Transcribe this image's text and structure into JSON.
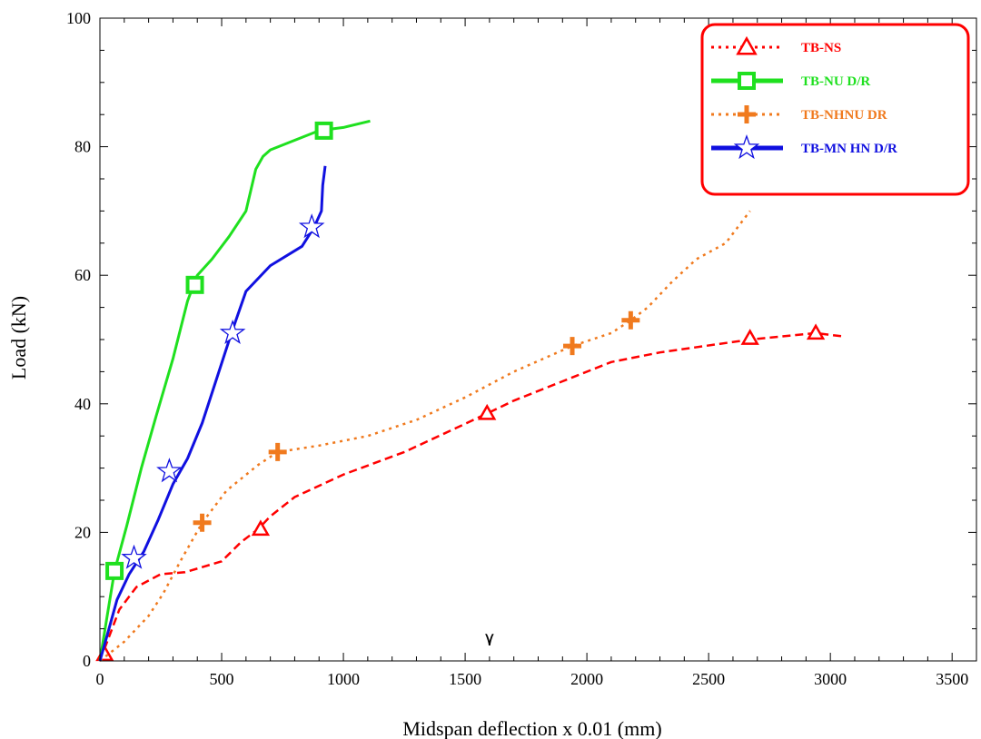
{
  "chart_data": {
    "type": "line",
    "title": "",
    "xlabel": "Midspan deflection x 0.01 (mm)",
    "ylabel": "Load (kN)",
    "xlim": [
      0,
      3600
    ],
    "ylim": [
      0,
      100
    ],
    "xticks": [
      0,
      500,
      1000,
      1500,
      2000,
      2500,
      3000,
      3500
    ],
    "yticks": [
      0,
      20,
      40,
      60,
      80,
      100
    ],
    "grid": false,
    "legend_position": "top-right",
    "annotation": "٧",
    "annotation_x": 1600,
    "annotation_y": 3,
    "series": [
      {
        "name": "TB-NS",
        "color": "#ff0000",
        "dash": "dashed",
        "legend_dash": "dotted",
        "marker": "triangle",
        "x": [
          0,
          80,
          150,
          250,
          350,
          500,
          580,
          650,
          700,
          800,
          1000,
          1250,
          1450,
          1590,
          1700,
          1900,
          2100,
          2300,
          2670,
          2940,
          3050
        ],
        "y": [
          0,
          8,
          11.5,
          13.5,
          13.8,
          15.5,
          18.5,
          20.5,
          22.5,
          25.5,
          29,
          32.5,
          36,
          38.5,
          40.5,
          43.5,
          46.5,
          48,
          50,
          51,
          50.5
        ],
        "marker_x": [
          20,
          660,
          1590,
          2670,
          2940
        ],
        "marker_y": [
          1,
          20.5,
          38.5,
          50.2,
          51
        ]
      },
      {
        "name": "TB-NU D/R",
        "color": "#1fe01f",
        "dash": "solid",
        "marker": "square",
        "x": [
          0,
          30,
          60,
          110,
          170,
          230,
          300,
          360,
          400,
          460,
          530,
          600,
          640,
          670,
          700,
          800,
          900,
          1000,
          1110
        ],
        "y": [
          0,
          7,
          14,
          21,
          30,
          38,
          47,
          56,
          60,
          62.5,
          66,
          70,
          76.5,
          78.5,
          79.5,
          81,
          82.5,
          83,
          84
        ],
        "marker_x": [
          60,
          390,
          920
        ],
        "marker_y": [
          14,
          58.5,
          82.5
        ]
      },
      {
        "name": "TB-NHNU DR",
        "color": "#f07a1e",
        "dash": "dotted",
        "marker": "plus",
        "x": [
          0,
          100,
          200,
          260,
          330,
          420,
          520,
          650,
          730,
          900,
          1100,
          1300,
          1500,
          1700,
          1940,
          2100,
          2180,
          2250,
          2350,
          2450,
          2570,
          2620,
          2670
        ],
        "y": [
          0,
          3,
          7,
          10.5,
          15.5,
          21.5,
          26.5,
          30.5,
          32.5,
          33.5,
          35,
          37.5,
          41,
          45,
          49,
          51,
          53,
          55,
          59,
          62.5,
          65,
          67.5,
          70
        ],
        "marker_x": [
          420,
          730,
          1940,
          2180
        ],
        "marker_y": [
          21.5,
          32.5,
          49,
          53
        ]
      },
      {
        "name": "TB-MN HN D/R",
        "color": "#1010e0",
        "dash": "solid",
        "marker": "star",
        "x": [
          0,
          30,
          70,
          120,
          180,
          240,
          300,
          360,
          420,
          480,
          540,
          600,
          700,
          830,
          880,
          910,
          915,
          925
        ],
        "y": [
          0,
          4,
          9.5,
          13.5,
          17,
          22,
          27.5,
          31.5,
          37,
          44,
          51,
          57.5,
          61.5,
          64.5,
          67.5,
          70,
          74,
          77
        ],
        "marker_x": [
          140,
          285,
          545,
          870
        ],
        "marker_y": [
          16,
          29.5,
          51,
          67.5
        ]
      }
    ]
  }
}
